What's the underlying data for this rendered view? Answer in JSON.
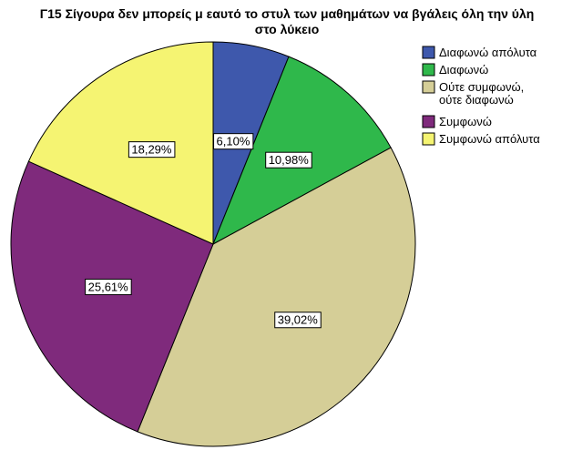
{
  "chart_data": {
    "type": "pie",
    "title": "Γ15 Σίγουρα δεν μπορείς μ εαυτό το στυλ των μαθημάτων να βγάλεις όλη την ύλη στο λύκειο",
    "title_lines": [
      "Γ15 Σίγουρα δεν μπορείς μ εαυτό το στυλ των μαθημάτων να βγάλεις όλη την ύλη",
      "στο λύκειο"
    ],
    "start_angle_deg": 0,
    "direction": "clockwise",
    "legend_position": "right",
    "slices": [
      {
        "label": "Διαφωνώ απόλυτα",
        "legend_lines": [
          "Διαφωνώ απόλυτα"
        ],
        "value": 6.1,
        "display": "6,10%",
        "color": "#3e58ac"
      },
      {
        "label": "Διαφωνώ",
        "legend_lines": [
          "Διαφωνώ"
        ],
        "value": 10.98,
        "display": "10,98%",
        "color": "#2fb84b"
      },
      {
        "label": "Ούτε συμφωνώ, ούτε διαφωνώ",
        "legend_lines": [
          "Ούτε συμφωνώ,",
          "ούτε διαφωνώ"
        ],
        "value": 39.02,
        "display": "39,02%",
        "color": "#d5ce97"
      },
      {
        "label": "Συμφωνώ",
        "legend_lines": [
          "Συμφωνώ"
        ],
        "value": 25.61,
        "display": "25,61%",
        "color": "#7f2a7c"
      },
      {
        "label": "Συμφωνώ απόλυτα",
        "legend_lines": [
          "Συμφωνώ απόλυτα"
        ],
        "value": 18.29,
        "display": "18,29%",
        "color": "#f5f472"
      }
    ]
  }
}
